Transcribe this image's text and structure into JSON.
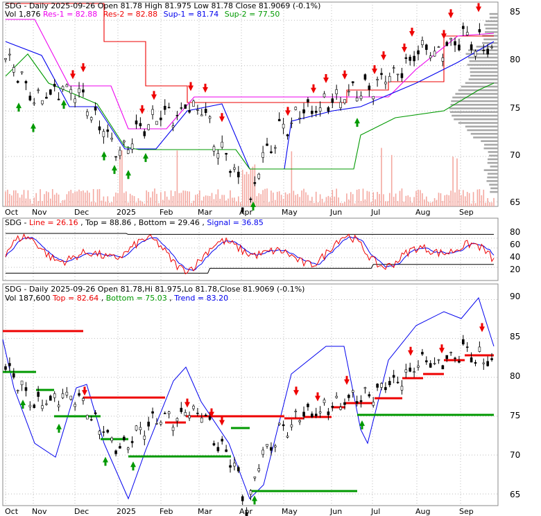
{
  "colors": {
    "res": "#ee0000",
    "sup": "#009900",
    "sup1": "#0000ee",
    "res1": "#ee00ee",
    "line": "#ee0000",
    "top": "#0000ee",
    "bottom": "#000000",
    "volume": "#f4a8a0",
    "profile": "#a8a8a8",
    "grid": "#bbbbbb",
    "candle": "#000000"
  },
  "months": [
    "Oct",
    "Nov",
    "Dec",
    "2025",
    "Feb",
    "Mar",
    "Apr",
    "May",
    "Jun",
    "Jul",
    "Aug",
    "Sep"
  ],
  "panel1": {
    "header": {
      "l1_prefix": "SDG - Daily 2025-09-26 Open 81.78  High 81.975  Low 81.78  Close 81.9069 (-0.1%)",
      "vol": "Vol 1,876 ",
      "res1": "Res-1 = 82.88",
      "res2": "Res-2 = 82.88",
      "sup1": "Sup-1 = 81.74",
      "sup2": "Sup-2 = 77.50"
    },
    "ticks": [
      "85",
      "80",
      "75",
      "70",
      "65"
    ]
  },
  "panel2": {
    "header": {
      "prefix": "SDG - ",
      "line": "Line = 26.16",
      "top": "Top = 88.86",
      "bottom": "Bottom = 29.46",
      "signal": "Signal = 36.85"
    },
    "ticks": [
      "80",
      "60",
      "40",
      "20"
    ]
  },
  "panel3": {
    "header": {
      "l1": "SDG - Daily 2025-09-26 Open 81.78,Hi 81.975,Lo 81.78,Close 81.9069 (-0.1%)",
      "vol": "Vol 187,600 ",
      "top": "Top = 82.64",
      "bottom": "Bottom = 75.03",
      "trend": "Trend = 83.20"
    },
    "ticks": [
      "90",
      "85",
      "80",
      "75",
      "70",
      "65"
    ]
  },
  "chart_data": [
    {
      "type": "candlestick",
      "title": "SDG - Daily 2025-09-26 Open 81.78 High 81.975 Low 81.78 Close 81.9069 (-0.1%)",
      "x_labels": [
        "Oct",
        "Nov",
        "Dec",
        "2025",
        "Feb",
        "Mar",
        "Apr",
        "May",
        "Jun",
        "Jul",
        "Aug",
        "Sep"
      ],
      "ylim": [
        64.5,
        87
      ],
      "y_ticks": [
        85,
        80,
        75,
        70,
        65
      ],
      "close_by_month": [
        81.5,
        76.0,
        77.5,
        70.5,
        74.5,
        75.5,
        66.5,
        73.5,
        76.0,
        77.5,
        81.0,
        83.0
      ],
      "indicators": {
        "Vol": 1876,
        "Res-1": 82.88,
        "Res-2": 82.88,
        "Sup-1": 81.74,
        "Sup-2": 77.5
      },
      "grid": true
    },
    {
      "type": "line",
      "title": "SDG - Line = 26.16, Top = 88.86, Bottom = 29.46, Signal = 36.85",
      "ylim": [
        0,
        100
      ],
      "y_ticks": [
        80,
        60,
        40,
        20
      ],
      "series": [
        {
          "name": "Line",
          "last": 26.16
        },
        {
          "name": "Signal",
          "last": 36.85
        },
        {
          "name": "Top",
          "last": 88.86
        },
        {
          "name": "Bottom",
          "last": 29.46
        }
      ]
    },
    {
      "type": "candlestick",
      "title": "SDG - Daily 2025-09-26 Open 81.78,Hi 81.975,Lo 81.78,Close 81.9069 (-0.1%)",
      "ylim": [
        63.5,
        92
      ],
      "y_ticks": [
        90,
        85,
        80,
        75,
        70,
        65
      ],
      "indicators": {
        "Vol": 187600,
        "Top": 82.64,
        "Bottom": 75.03,
        "Trend": 83.2
      },
      "grid": true
    }
  ]
}
